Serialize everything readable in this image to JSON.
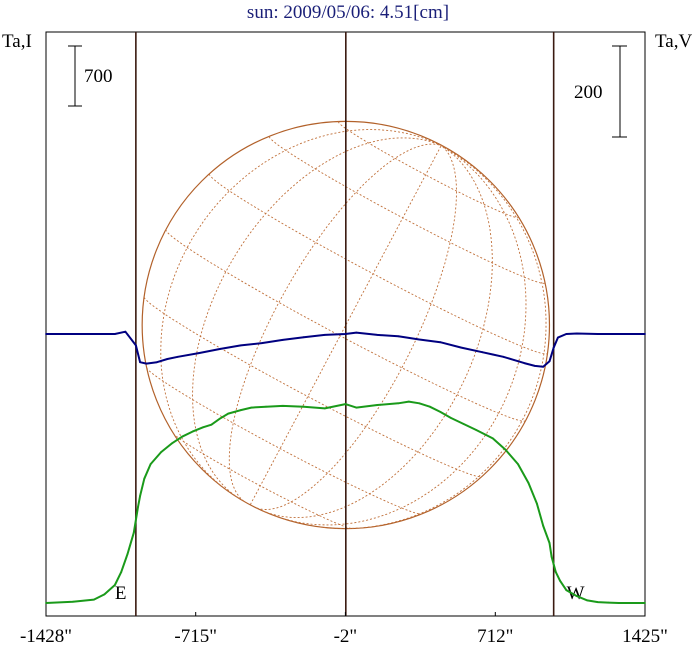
{
  "chart_data": {
    "type": "line",
    "title": "sun: 2009/05/06: 4.51[cm]",
    "left_axis_label": "Ta,I",
    "right_axis_label": "Ta,V",
    "left_scale_bar": 700,
    "right_scale_bar": 200,
    "x_ticks": [
      {
        "value": -1428,
        "label": "-1428\""
      },
      {
        "value": -715,
        "label": "-715\""
      },
      {
        "value": -2,
        "label": "-2\""
      },
      {
        "value": 712,
        "label": "712\""
      },
      {
        "value": 1425,
        "label": "1425\""
      }
    ],
    "xlim": [
      -1428,
      1425
    ],
    "limb_markers": [
      {
        "x": -1000,
        "label": "E"
      },
      {
        "x": 0,
        "label": ""
      },
      {
        "x": 990,
        "label": "W"
      }
    ],
    "solar_disk": {
      "radius": 970,
      "rings": [
        -60,
        -40,
        -20,
        0,
        20,
        40,
        60
      ],
      "meridians": [
        -60,
        -40,
        -20,
        0,
        20,
        40,
        60,
        80
      ],
      "tilt_deg": -28
    },
    "series": [
      {
        "color": "#1a9a1a",
        "axis": "left",
        "x": [
          -1428,
          -1300,
          -1200,
          -1150,
          -1100,
          -1070,
          -1040,
          -1010,
          -990,
          -980,
          -960,
          -930,
          -880,
          -830,
          -780,
          -730,
          -680,
          -640,
          -600,
          -560,
          -500,
          -450,
          -380,
          -300,
          -200,
          -100,
          -2,
          50,
          150,
          250,
          300,
          350,
          400,
          450,
          500,
          560,
          620,
          700,
          760,
          820,
          870,
          910,
          940,
          970,
          980,
          990,
          1000,
          1020,
          1050,
          1100,
          1150,
          1200,
          1250,
          1300,
          1425
        ],
        "y": [
          0,
          15,
          40,
          100,
          210,
          360,
          570,
          820,
          1120,
          1250,
          1450,
          1620,
          1760,
          1860,
          1940,
          2000,
          2050,
          2080,
          2150,
          2210,
          2250,
          2280,
          2290,
          2300,
          2290,
          2270,
          2320,
          2280,
          2310,
          2330,
          2350,
          2330,
          2290,
          2230,
          2160,
          2090,
          2020,
          1920,
          1790,
          1620,
          1400,
          1160,
          900,
          700,
          540,
          450,
          360,
          260,
          150,
          80,
          30,
          10,
          5,
          0,
          0
        ]
      },
      {
        "color": "#000080",
        "axis": "right",
        "x": [
          -1428,
          -1100,
          -1050,
          -1000,
          -980,
          -950,
          -900,
          -850,
          -800,
          -700,
          -600,
          -500,
          -400,
          -300,
          -200,
          -100,
          -2,
          50,
          150,
          250,
          350,
          450,
          550,
          650,
          700,
          750,
          800,
          850,
          900,
          940,
          970,
          990,
          1010,
          1050,
          1100,
          1200,
          1300,
          1425
        ],
        "y": [
          0,
          0,
          5,
          -25,
          -62,
          -65,
          -62,
          -55,
          -50,
          -42,
          -33,
          -25,
          -20,
          -13,
          -7,
          -2,
          0,
          3,
          -2,
          -5,
          -12,
          -18,
          -30,
          -40,
          -45,
          -50,
          -57,
          -64,
          -70,
          -72,
          -60,
          -30,
          -8,
          0,
          1,
          0,
          0,
          0
        ]
      }
    ]
  }
}
